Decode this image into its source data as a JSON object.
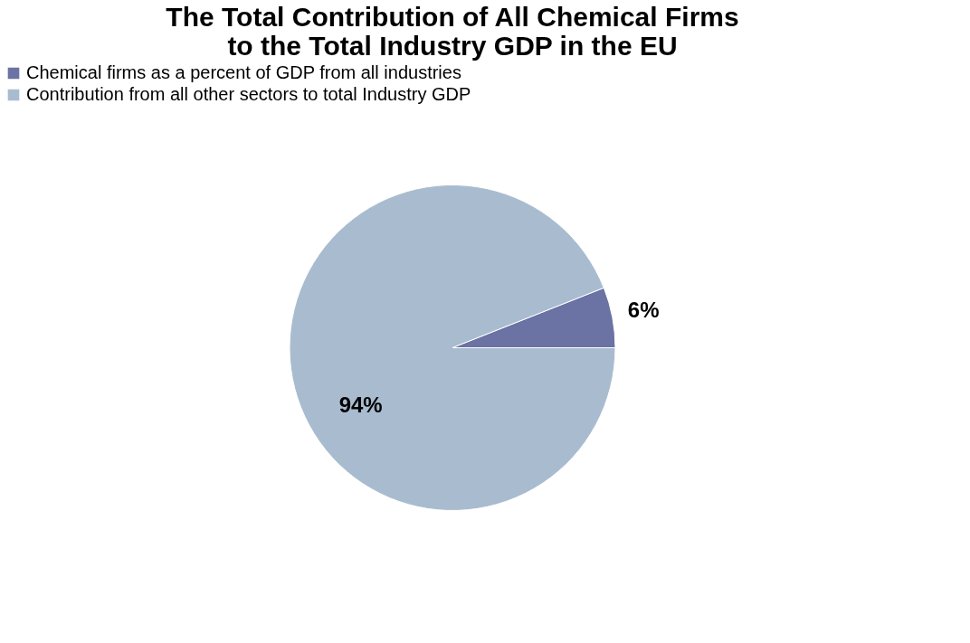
{
  "chart_data": {
    "type": "pie",
    "title": "The Total Contribution of All Chemical Firms to the Total Industry GDP in the EU",
    "categories": [
      "Chemical firms as a percent of GDP from all industries",
      "Contribution from all other sectors to total Industry GDP"
    ],
    "values": [
      6,
      94
    ],
    "colors": [
      "#6b72a4",
      "#a9bccf"
    ],
    "value_labels": [
      "6%",
      "94%"
    ],
    "legend": "top"
  }
}
